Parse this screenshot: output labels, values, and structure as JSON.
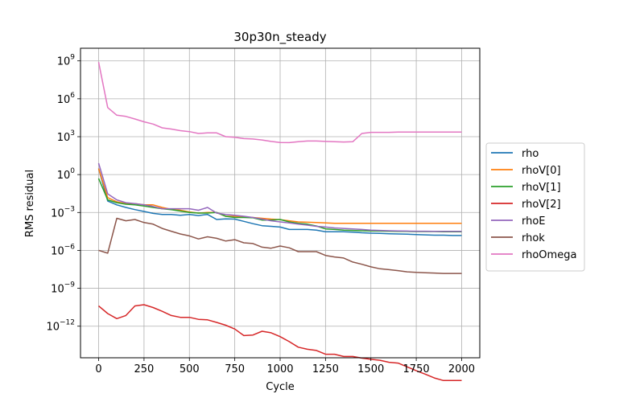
{
  "chart_data": {
    "type": "line",
    "title": "30p30n_steady",
    "xlabel": "Cycle",
    "ylabel": "RMS residual",
    "y_scale": "log",
    "xlim": [
      -100,
      2100
    ],
    "ylim_exponent": [
      -14.5,
      10.0
    ],
    "grid": true,
    "legend_position": "right",
    "x_ticks": [
      0,
      250,
      500,
      750,
      1000,
      1250,
      1500,
      1750,
      2000
    ],
    "x_tick_labels": [
      "0",
      "250",
      "500",
      "750",
      "1000",
      "1250",
      "1500",
      "1750",
      "2000"
    ],
    "y_ticks_exponent": [
      -12,
      -9,
      -6,
      -3,
      0,
      3,
      6,
      9
    ],
    "y_tick_labels": [
      "10",
      "10",
      "10",
      "10",
      "10",
      "10",
      "10",
      "10"
    ],
    "y_tick_exponent_labels": [
      "−12",
      "−9",
      "−6",
      "−3",
      "0",
      "3",
      "6",
      "9"
    ],
    "series": [
      {
        "name": "rho",
        "color": "#1f77b4",
        "x": [
          0,
          50,
          100,
          150,
          200,
          250,
          300,
          350,
          400,
          450,
          500,
          550,
          600,
          650,
          700,
          750,
          800,
          850,
          900,
          950,
          1000,
          1050,
          1100,
          1150,
          1200,
          1250,
          1300,
          1350,
          1400,
          1450,
          1500,
          1550,
          1600,
          1650,
          1700,
          1750,
          1800,
          1850,
          1900,
          1950,
          2000
        ],
        "y": [
          3,
          0.008,
          0.004,
          0.0025,
          0.0017,
          0.0012,
          0.00085,
          0.0007,
          0.0007,
          0.0006,
          0.0007,
          0.00057,
          0.0007,
          0.00028,
          0.00031,
          0.0003,
          0.0002,
          0.00013,
          9e-05,
          8e-05,
          7e-05,
          4.5e-05,
          4.5e-05,
          4.5e-05,
          4e-05,
          3e-05,
          3e-05,
          3e-05,
          2.8e-05,
          2.5e-05,
          2.3e-05,
          2.2e-05,
          2.1e-05,
          2e-05,
          1.9e-05,
          1.8e-05,
          1.7e-05,
          1.6e-05,
          1.6e-05,
          1.5e-05,
          1.5e-05
        ]
      },
      {
        "name": "rhoV[0]",
        "color": "#ff7f0e",
        "x": [
          0,
          50,
          100,
          150,
          200,
          250,
          300,
          350,
          400,
          450,
          500,
          550,
          600,
          650,
          700,
          750,
          800,
          850,
          900,
          950,
          1000,
          1050,
          1100,
          1150,
          1200,
          1250,
          1300,
          1350,
          1400,
          1450,
          1500,
          1550,
          1600,
          1650,
          1700,
          1750,
          1800,
          1850,
          1900,
          1950,
          2000
        ],
        "y": [
          3,
          0.015,
          0.007,
          0.005,
          0.005,
          0.004,
          0.004,
          0.0025,
          0.0018,
          0.0015,
          0.0011,
          0.0009,
          0.001,
          0.001,
          0.0005,
          0.0005,
          0.00045,
          0.0004,
          0.00035,
          0.0003,
          0.00027,
          0.00022,
          0.00018,
          0.00017,
          0.00016,
          0.00015,
          0.00014,
          0.00014,
          0.00014,
          0.00014,
          0.00014,
          0.00014,
          0.00014,
          0.00014,
          0.00014,
          0.00014,
          0.00014,
          0.00014,
          0.00014,
          0.00014,
          0.00014
        ]
      },
      {
        "name": "rhoV[1]",
        "color": "#2ca02c",
        "x": [
          0,
          50,
          100,
          150,
          200,
          250,
          300,
          350,
          400,
          450,
          500,
          550,
          600,
          650,
          700,
          750,
          800,
          850,
          900,
          950,
          1000,
          1050,
          1100,
          1150,
          1200,
          1250,
          1300,
          1350,
          1400,
          1450,
          1500,
          1550,
          1600,
          1650,
          1700,
          1750,
          1800,
          1850,
          1900,
          1950,
          2000
        ],
        "y": [
          0.5,
          0.01,
          0.006,
          0.0045,
          0.004,
          0.0032,
          0.0025,
          0.002,
          0.0017,
          0.0013,
          0.001,
          0.0009,
          0.0009,
          0.001,
          0.0005,
          0.0004,
          0.0004,
          0.00038,
          0.00025,
          0.00025,
          0.00028,
          0.00018,
          0.00014,
          0.00012,
          8.5e-05,
          5e-05,
          4.5e-05,
          4e-05,
          3.8e-05,
          3.6e-05,
          3.5e-05,
          3.4e-05,
          3.3e-05,
          3.2e-05,
          3.2e-05,
          3.1e-05,
          3.1e-05,
          3.1e-05,
          3e-05,
          3e-05,
          3e-05
        ]
      },
      {
        "name": "rhoV[2]",
        "color": "#d62728",
        "x": [
          0,
          50,
          100,
          150,
          200,
          250,
          300,
          350,
          400,
          450,
          500,
          550,
          600,
          650,
          700,
          750,
          800,
          850,
          900,
          950,
          1000,
          1050,
          1100,
          1150,
          1200,
          1250,
          1300,
          1350,
          1400,
          1450,
          1500,
          1550,
          1600,
          1650,
          1700,
          1750,
          1800,
          1850,
          1900,
          1950,
          2000
        ],
        "y": [
          4e-11,
          1e-11,
          4e-12,
          7e-12,
          4e-11,
          5e-11,
          3e-11,
          1.5e-11,
          7e-12,
          5e-12,
          5e-12,
          3.5e-12,
          3.2e-12,
          2e-12,
          1.2e-12,
          6e-13,
          1.8e-13,
          2e-13,
          4e-13,
          3e-13,
          1.5e-13,
          6e-14,
          2.2e-14,
          1.5e-14,
          1.2e-14,
          6e-15,
          6e-15,
          4e-15,
          4e-15,
          3e-15,
          2.4e-15,
          2e-15,
          1.4e-15,
          1.2e-15,
          6e-16,
          3e-16,
          1.6e-16,
          8e-17,
          5e-17,
          5e-17,
          5e-17
        ]
      },
      {
        "name": "rhoE",
        "color": "#9467bd",
        "x": [
          0,
          50,
          100,
          150,
          200,
          250,
          300,
          350,
          400,
          450,
          500,
          550,
          600,
          650,
          700,
          750,
          800,
          850,
          900,
          950,
          1000,
          1050,
          1100,
          1150,
          1200,
          1250,
          1300,
          1350,
          1400,
          1450,
          1500,
          1550,
          1600,
          1650,
          1700,
          1750,
          1800,
          1850,
          1900,
          1950,
          2000
        ],
        "y": [
          8,
          0.03,
          0.01,
          0.006,
          0.005,
          0.004,
          0.003,
          0.002,
          0.002,
          0.002,
          0.002,
          0.0015,
          0.0025,
          0.0009,
          0.0007,
          0.0006,
          0.0005,
          0.0004,
          0.0003,
          0.00022,
          0.00018,
          0.00015,
          0.00012,
          0.0001,
          8e-05,
          7e-05,
          6e-05,
          5.5e-05,
          5e-05,
          4.5e-05,
          4e-05,
          3.8e-05,
          3.6e-05,
          3.5e-05,
          3.4e-05,
          3.3e-05,
          3.3e-05,
          3.2e-05,
          3.2e-05,
          3.2e-05,
          3.2e-05
        ]
      },
      {
        "name": "rhok",
        "color": "#8c564b",
        "x": [
          0,
          50,
          100,
          150,
          200,
          250,
          300,
          350,
          400,
          450,
          500,
          550,
          600,
          650,
          700,
          750,
          800,
          850,
          900,
          950,
          1000,
          1050,
          1100,
          1150,
          1200,
          1250,
          1300,
          1350,
          1400,
          1450,
          1500,
          1550,
          1600,
          1650,
          1700,
          1750,
          1800,
          1850,
          1900,
          1950,
          2000
        ],
        "y": [
          1e-06,
          6e-07,
          0.00035,
          0.00022,
          0.00028,
          0.00016,
          0.00012,
          5.5e-05,
          3.3e-05,
          2e-05,
          1.4e-05,
          8e-06,
          1.2e-05,
          9e-06,
          5.5e-06,
          7e-06,
          4e-06,
          3.5e-06,
          1.8e-06,
          1.5e-06,
          2.2e-06,
          1.6e-06,
          8e-07,
          8e-07,
          8e-07,
          4e-07,
          3e-07,
          2.5e-07,
          1.2e-07,
          8e-08,
          5e-08,
          3.5e-08,
          3e-08,
          2.5e-08,
          2e-08,
          1.8e-08,
          1.7e-08,
          1.6e-08,
          1.5e-08,
          1.5e-08,
          1.5e-08
        ]
      },
      {
        "name": "rhoOmega",
        "color": "#e377c2",
        "x": [
          0,
          50,
          100,
          150,
          200,
          250,
          300,
          350,
          400,
          450,
          500,
          550,
          600,
          650,
          700,
          750,
          800,
          850,
          900,
          950,
          1000,
          1050,
          1100,
          1150,
          1200,
          1250,
          1300,
          1350,
          1400,
          1450,
          1500,
          1550,
          1600,
          1650,
          1700,
          1750,
          1800,
          1850,
          1900,
          1950,
          2000
        ],
        "y": [
          800000000,
          200000,
          50000,
          40000,
          25000,
          15000,
          10000,
          5000,
          4000,
          3000,
          2500,
          1800,
          2000,
          2000,
          1000,
          900,
          700,
          650,
          550,
          420,
          350,
          340,
          400,
          450,
          450,
          420,
          400,
          380,
          400,
          1800,
          2200,
          2200,
          2200,
          2300,
          2300,
          2300,
          2300,
          2300,
          2300,
          2300,
          2300
        ]
      }
    ]
  }
}
